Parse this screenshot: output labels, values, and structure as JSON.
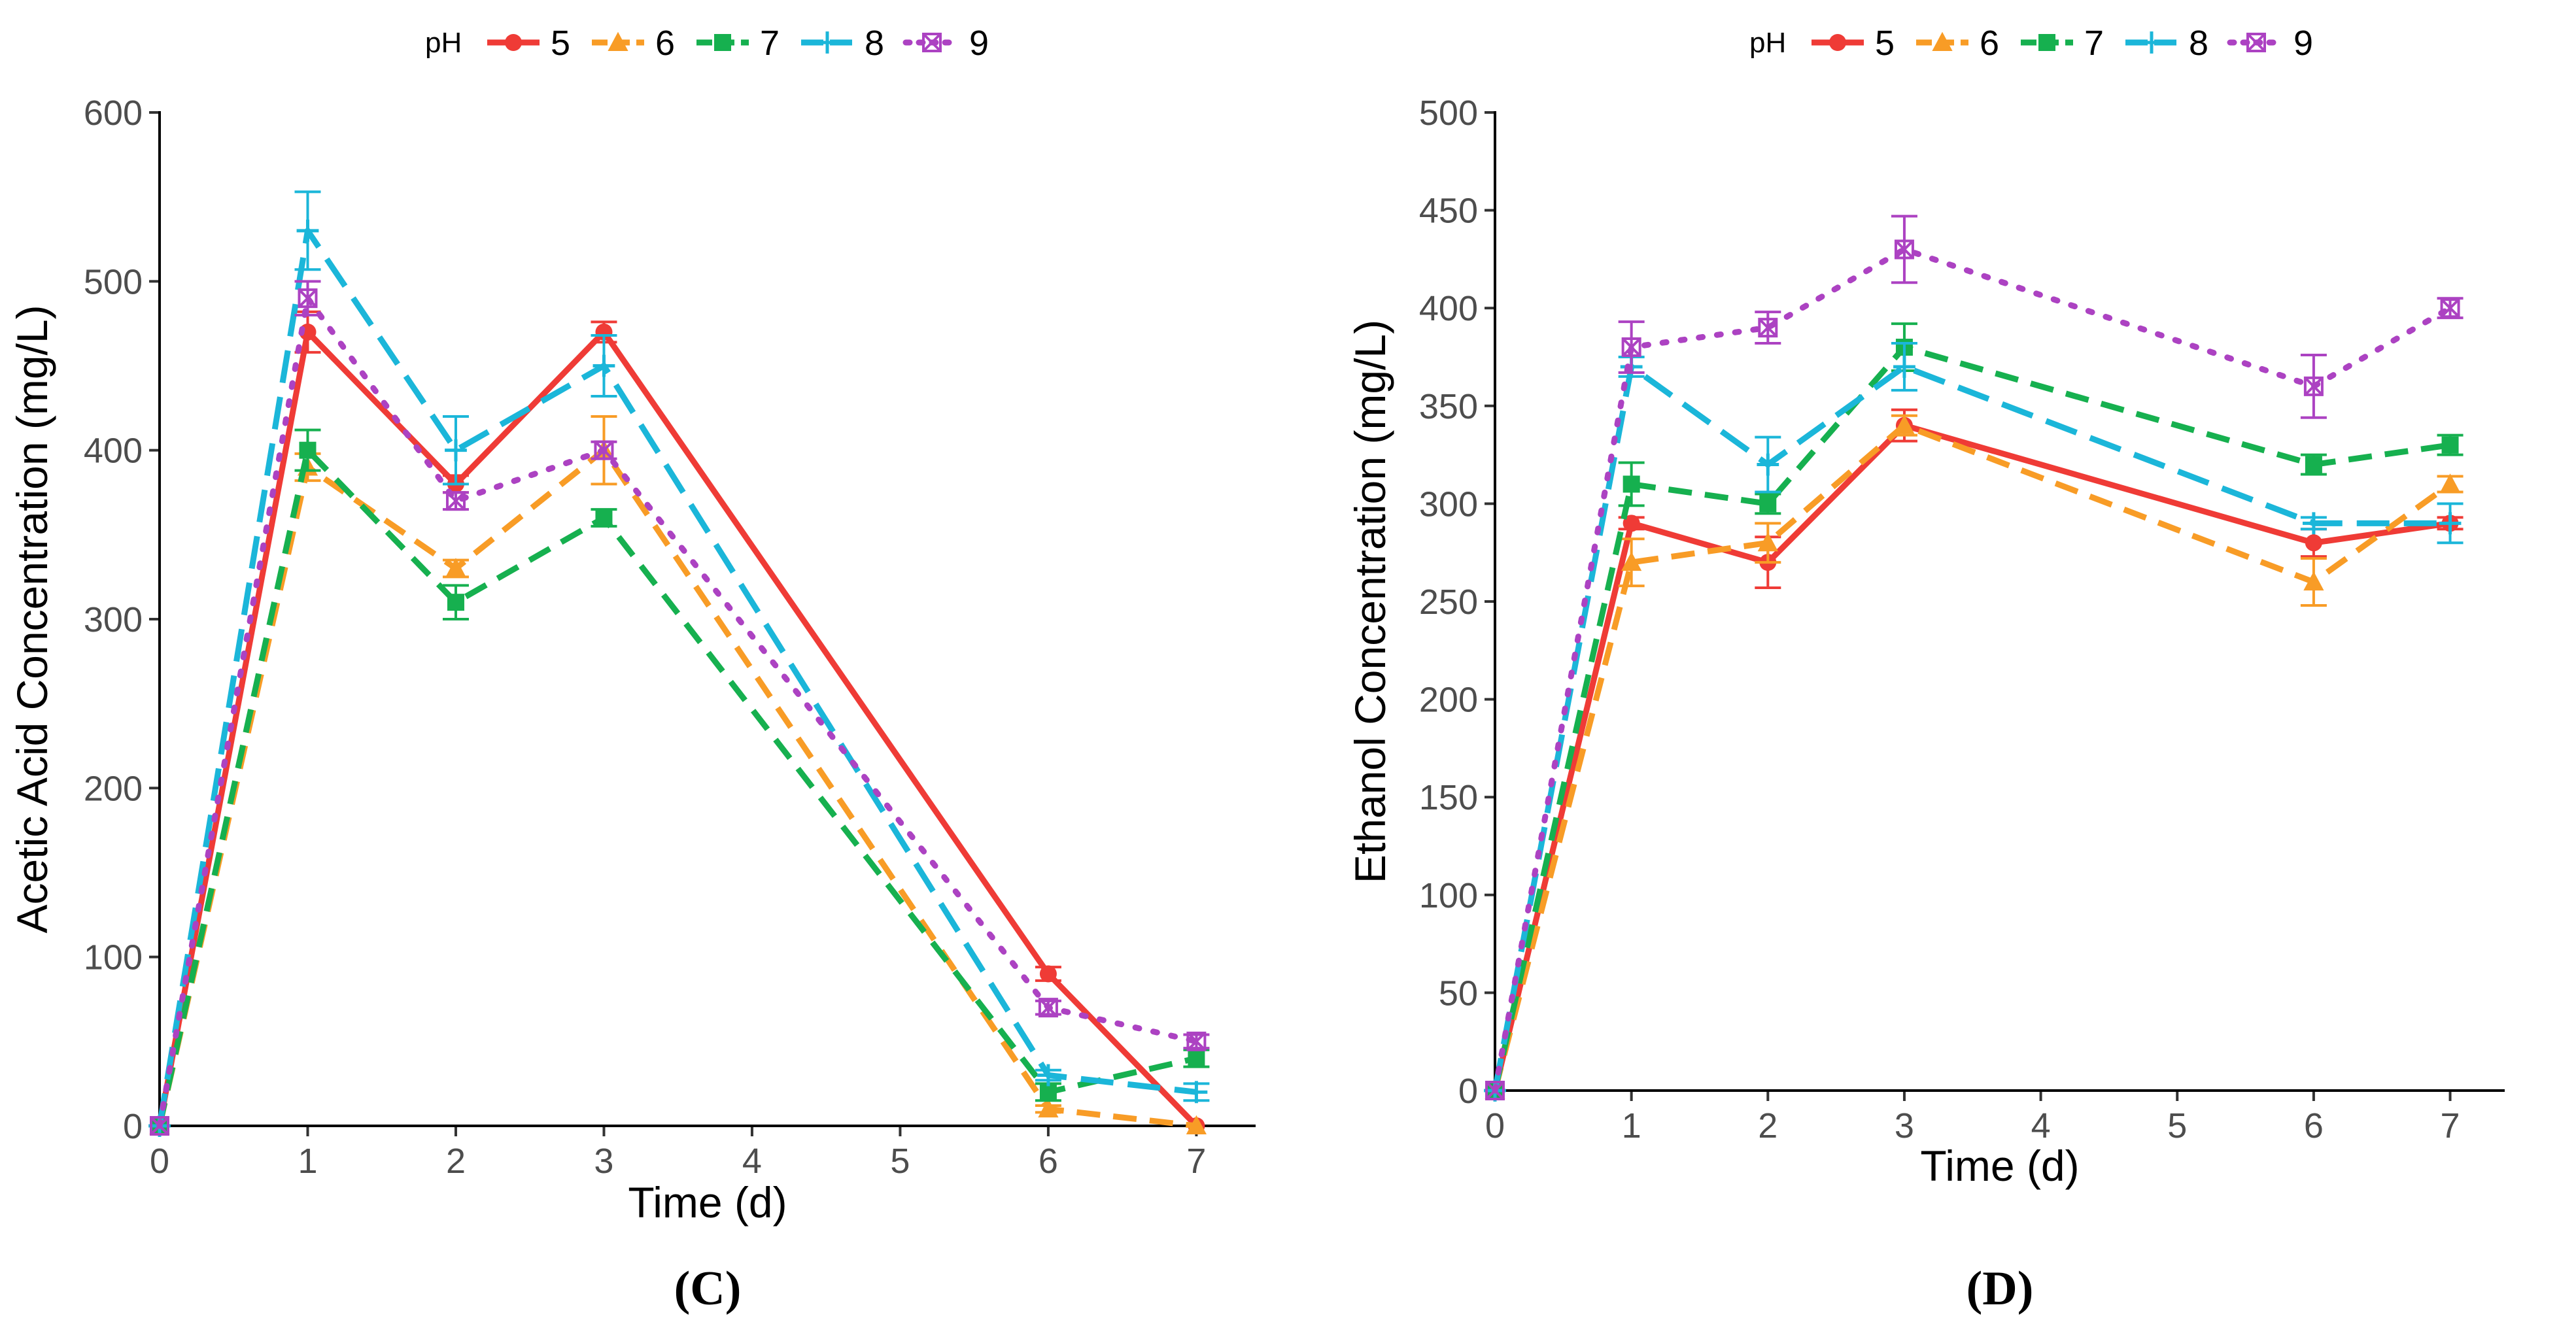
{
  "chart_data": [
    {
      "panel_label": "(C)",
      "type": "line",
      "xlabel": "Time (d)",
      "ylabel": "Acetic Acid Concentration (mg/L)",
      "xlim": [
        0,
        7.4
      ],
      "ylim": [
        0,
        600
      ],
      "xticks": [
        "0",
        "1",
        "2",
        "3",
        "4",
        "5",
        "6",
        "7"
      ],
      "yticks": [
        "0",
        "100",
        "200",
        "300",
        "400",
        "500",
        "600"
      ],
      "legend": {
        "title": "pH",
        "position": "top",
        "labels": [
          "5",
          "6",
          "7",
          "8",
          "9"
        ]
      },
      "x": [
        0,
        1,
        2,
        3,
        6,
        7
      ],
      "series": [
        {
          "name": "5",
          "color": "#ef3b36",
          "dash": "solid",
          "marker": "circle",
          "values": [
            0,
            470,
            380,
            470,
            90,
            0
          ],
          "errors": [
            0,
            12,
            5,
            6,
            4,
            0
          ]
        },
        {
          "name": "6",
          "color": "#f89c26",
          "dash": "dashed",
          "marker": "triangle",
          "values": [
            0,
            390,
            330,
            400,
            10,
            0
          ],
          "errors": [
            0,
            8,
            5,
            20,
            2,
            0
          ]
        },
        {
          "name": "7",
          "color": "#16b04f",
          "dash": "dashed",
          "marker": "square",
          "values": [
            0,
            400,
            310,
            360,
            20,
            40
          ],
          "errors": [
            0,
            12,
            10,
            5,
            5,
            5
          ]
        },
        {
          "name": "8",
          "color": "#1bb6d9",
          "dash": "longdash",
          "marker": "plus",
          "values": [
            0,
            530,
            400,
            450,
            30,
            20
          ],
          "errors": [
            0,
            23,
            20,
            18,
            3,
            5
          ]
        },
        {
          "name": "9",
          "color": "#ac42c2",
          "dash": "dotted",
          "marker": "boxcross",
          "values": [
            0,
            490,
            370,
            400,
            70,
            50
          ],
          "errors": [
            0,
            10,
            5,
            5,
            4,
            4
          ]
        }
      ]
    },
    {
      "panel_label": "(D)",
      "type": "line",
      "xlabel": "Time (d)",
      "ylabel": "Ethanol Concentration (mg/L)",
      "xlim": [
        0,
        7.4
      ],
      "ylim": [
        0,
        500
      ],
      "xticks": [
        "0",
        "1",
        "2",
        "3",
        "4",
        "5",
        "6",
        "7"
      ],
      "yticks": [
        "0",
        "50",
        "100",
        "150",
        "200",
        "250",
        "300",
        "350",
        "400",
        "450",
        "500"
      ],
      "legend": {
        "title": "pH",
        "position": "top",
        "labels": [
          "5",
          "6",
          "7",
          "8",
          "9"
        ]
      },
      "x": [
        0,
        1,
        2,
        3,
        6,
        7
      ],
      "series": [
        {
          "name": "5",
          "color": "#ef3b36",
          "dash": "solid",
          "marker": "circle",
          "values": [
            0,
            290,
            270,
            340,
            280,
            290
          ],
          "errors": [
            0,
            3,
            13,
            8,
            7,
            3
          ]
        },
        {
          "name": "6",
          "color": "#f89c26",
          "dash": "dashed",
          "marker": "triangle",
          "values": [
            0,
            270,
            280,
            340,
            260,
            310
          ],
          "errors": [
            0,
            12,
            10,
            5,
            12,
            4
          ]
        },
        {
          "name": "7",
          "color": "#16b04f",
          "dash": "dashed",
          "marker": "square",
          "values": [
            0,
            310,
            300,
            380,
            320,
            330
          ],
          "errors": [
            0,
            11,
            5,
            12,
            5,
            5
          ]
        },
        {
          "name": "8",
          "color": "#1bb6d9",
          "dash": "longdash",
          "marker": "plus",
          "values": [
            0,
            370,
            320,
            370,
            290,
            290
          ],
          "errors": [
            0,
            5,
            14,
            12,
            3,
            10
          ]
        },
        {
          "name": "9",
          "color": "#ac42c2",
          "dash": "dotted",
          "marker": "boxcross",
          "values": [
            0,
            380,
            390,
            430,
            360,
            400
          ],
          "errors": [
            0,
            13,
            8,
            17,
            16,
            5
          ]
        }
      ]
    }
  ]
}
